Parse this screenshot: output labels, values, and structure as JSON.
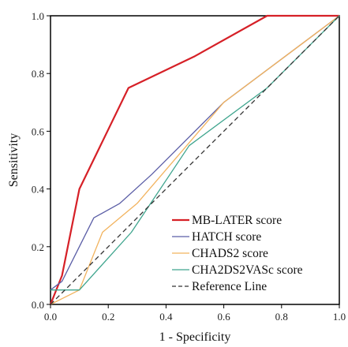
{
  "chart_data": {
    "type": "line",
    "xlabel": "1 - Specificity",
    "ylabel": "Sensitivity",
    "xlim": [
      0,
      1
    ],
    "ylim": [
      0,
      1
    ],
    "x_ticks": [
      "0.0",
      "0.2",
      "0.4",
      "0.6",
      "0.8",
      "1.0"
    ],
    "y_ticks": [
      "0.0",
      "0.2",
      "0.4",
      "0.6",
      "0.8",
      "1.0"
    ],
    "grid": false,
    "legend_position": "bottom-right",
    "series": [
      {
        "name": "MB-LATER score",
        "color": "#d62027",
        "dash": "solid",
        "points": [
          [
            0,
            0
          ],
          [
            0.04,
            0.1
          ],
          [
            0.1,
            0.4
          ],
          [
            0.27,
            0.75
          ],
          [
            0.5,
            0.86
          ],
          [
            0.75,
            1.0
          ],
          [
            1.0,
            1.0
          ]
        ]
      },
      {
        "name": "HATCH score",
        "color": "#5b5ea6",
        "dash": "solid",
        "points": [
          [
            0,
            0.05
          ],
          [
            0.04,
            0.08
          ],
          [
            0.15,
            0.3
          ],
          [
            0.24,
            0.35
          ],
          [
            0.35,
            0.45
          ],
          [
            0.6,
            0.7
          ],
          [
            1.0,
            1.0
          ]
        ]
      },
      {
        "name": "CHADS2 score",
        "color": "#f2b35e",
        "dash": "solid",
        "points": [
          [
            0,
            0
          ],
          [
            0.1,
            0.05
          ],
          [
            0.18,
            0.25
          ],
          [
            0.3,
            0.35
          ],
          [
            0.6,
            0.7
          ],
          [
            1.0,
            1.0
          ]
        ]
      },
      {
        "name": "CHA2DS2VASc score",
        "color": "#3fa58e",
        "dash": "solid",
        "points": [
          [
            0,
            0.05
          ],
          [
            0.1,
            0.05
          ],
          [
            0.28,
            0.25
          ],
          [
            0.48,
            0.55
          ],
          [
            0.75,
            0.75
          ],
          [
            1.0,
            1.0
          ]
        ]
      },
      {
        "name": "Reference Line",
        "color": "#333333",
        "dash": "dashed",
        "points": [
          [
            0,
            0
          ],
          [
            1,
            1
          ]
        ]
      }
    ]
  }
}
